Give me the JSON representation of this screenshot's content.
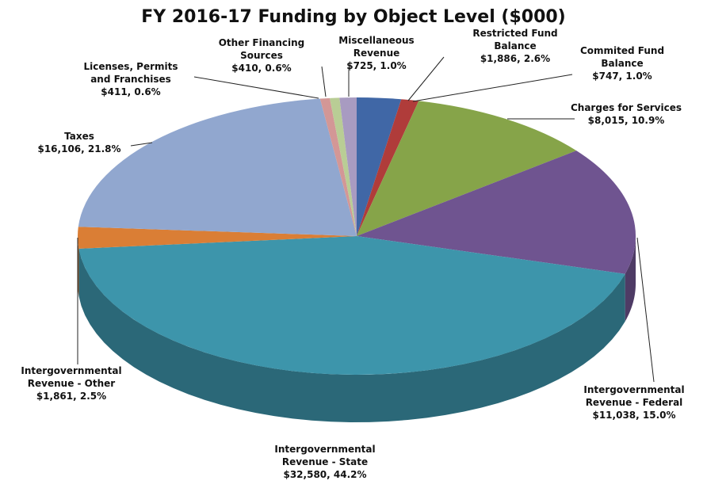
{
  "chart_data": {
    "type": "pie",
    "title": "FY 2016-17 Funding by Object Level ($000)",
    "categories": [
      "Restricted Fund Balance",
      "Commited Fund Balance",
      "Charges for Services",
      "Intergovernmental Revenue - Federal",
      "Intergovernmental Revenue - State",
      "Intergovernmental Revenue - Other",
      "Taxes",
      "Licenses, Permits and Franchises",
      "Other Financing Sources",
      "Miscellaneous Revenue"
    ],
    "values": [
      1886,
      747,
      8015,
      11038,
      32580,
      1861,
      16106,
      411,
      410,
      725
    ],
    "value_labels": [
      "$1,886, 2.6%",
      "$747, 1.0%",
      "$8,015, 10.9%",
      "$11,038, 15.0%",
      "$32,580, 44.2%",
      "$1,861, 2.5%",
      "$16,106, 21.8%",
      "$411, 0.6%",
      "$410, 0.6%",
      "$725, 1.0%"
    ],
    "colors": [
      "#4067a6",
      "#b03c3a",
      "#86a449",
      "#6f5490",
      "#3d95ab",
      "#da7e35",
      "#91a7cf",
      "#d39796",
      "#b9cd95",
      "#a89bc1"
    ]
  }
}
